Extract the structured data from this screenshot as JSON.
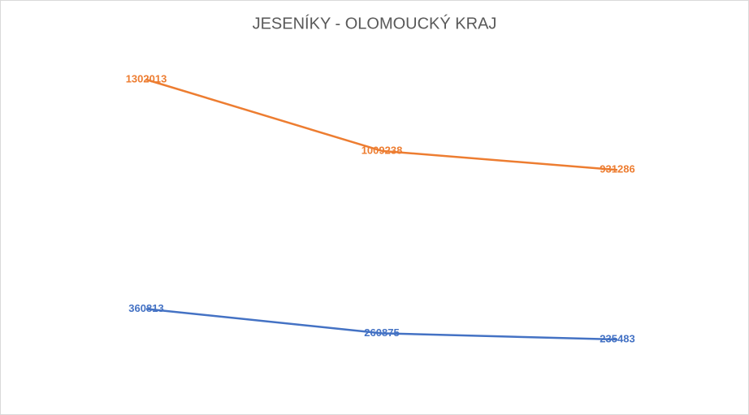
{
  "chart_data": {
    "type": "line",
    "title": "JESENÍKY - OLOMOUCKÝ KRAJ",
    "categories": [
      null,
      null,
      null
    ],
    "series": [
      {
        "color": "#4472c4",
        "values": [
          360813,
          260875,
          235483
        ]
      },
      {
        "color": "#ed7d31",
        "values": [
          1302013,
          1009238,
          931286
        ]
      }
    ]
  }
}
